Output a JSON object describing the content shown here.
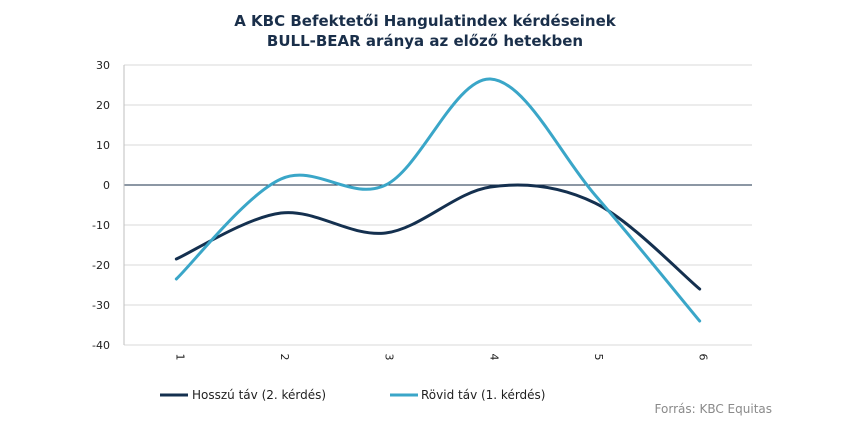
{
  "chart_data": {
    "type": "line",
    "title_line1": "A KBC Befektetői Hangulatindex  kérdéseinek",
    "title_line2": "BULL-BEAR aránya az előző hetekben",
    "x": [
      "1",
      "2",
      "3",
      "4",
      "5",
      "6"
    ],
    "ylim": [
      -40,
      30
    ],
    "yticks": [
      "30",
      "20",
      "10",
      "0",
      "-10",
      "-20",
      "-30",
      "-40"
    ],
    "grid": true,
    "legend_position": "bottom-left",
    "series": [
      {
        "name": "Hosszú táv (2. kérdés)",
        "color": "#14304f",
        "values": [
          -18.5,
          -7,
          -12,
          -0.5,
          -4.5,
          -26
        ]
      },
      {
        "name": "Rövid táv (1. kérdés)",
        "color": "#3aa6c8",
        "values": [
          -23.5,
          1.5,
          0,
          26.5,
          -2.5,
          -34
        ]
      }
    ],
    "source": "Forrás: KBC Equitas"
  }
}
